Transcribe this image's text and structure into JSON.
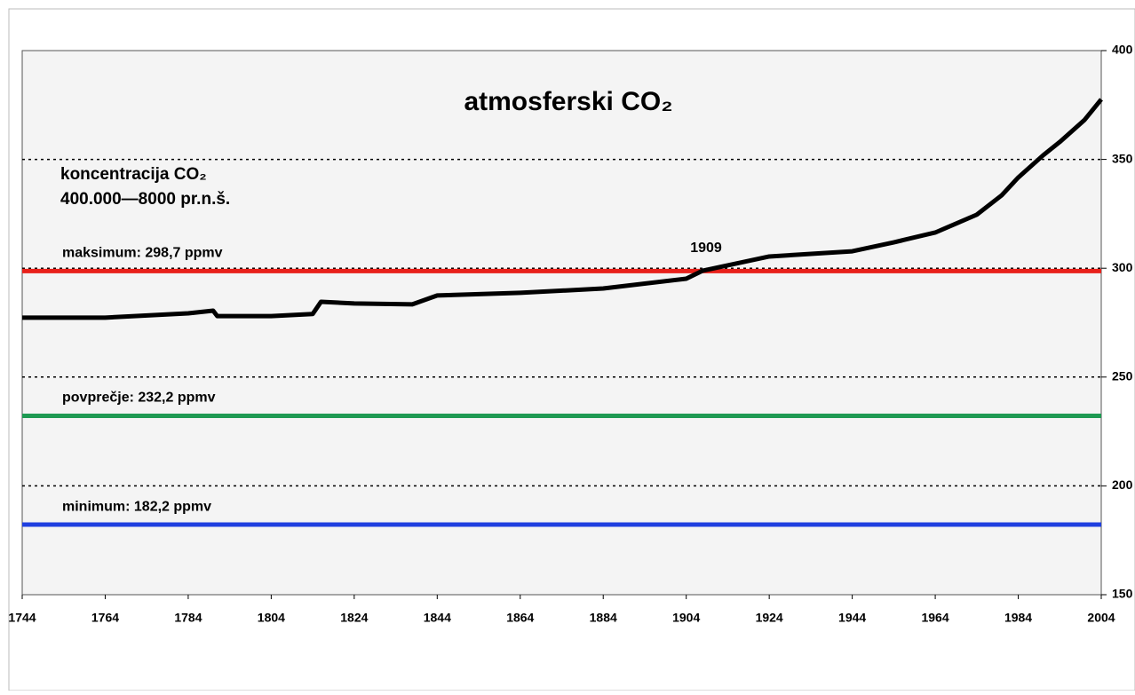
{
  "chart_data": {
    "type": "line",
    "title": "atmosferski CO₂",
    "notes": [
      "koncentracija CO₂",
      "400.000—8000 pr.n.š."
    ],
    "annotation": "1909",
    "x": [
      1744,
      1764,
      1784,
      1790,
      1791,
      1804,
      1814,
      1816,
      1824,
      1838,
      1844,
      1864,
      1884,
      1904,
      1908,
      1924,
      1944,
      1954,
      1964,
      1974,
      1980,
      1984,
      1990,
      1994,
      2000,
      2004
    ],
    "series": [
      {
        "color": "#000000",
        "values": [
          277.3,
          277.3,
          279.3,
          280.5,
          278,
          278,
          279,
          284.6,
          283.8,
          283.4,
          287.5,
          288.7,
          290.7,
          295.2,
          298.9,
          305.4,
          307.8,
          311.9,
          316.4,
          324.6,
          333.5,
          341.7,
          351.9,
          358,
          368.2,
          377.6
        ]
      }
    ],
    "reference_lines": [
      {
        "label": "maksimum: 298,7 ppmv",
        "value": 298.7,
        "color": "#e8201a"
      },
      {
        "label": "povprečje: 232,2 ppmv",
        "value": 232.2,
        "color": "#1e9a52"
      },
      {
        "label": "minimum: 182,2 ppmv",
        "value": 182.2,
        "color": "#1f3fe0"
      }
    ],
    "xlim": [
      1744,
      2004
    ],
    "xticks": [
      1744,
      1764,
      1784,
      1804,
      1824,
      1844,
      1864,
      1884,
      1904,
      1924,
      1944,
      1964,
      1984,
      2004
    ],
    "ylim": [
      150,
      400
    ],
    "yticks": [
      150,
      200,
      250,
      300,
      350,
      400
    ],
    "grid": true
  }
}
